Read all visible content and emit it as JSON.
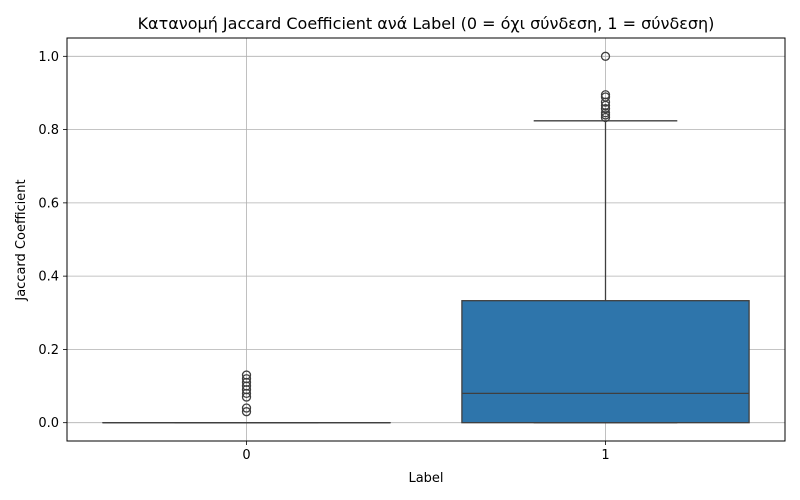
{
  "chart_data": {
    "type": "box",
    "title": "Κατανομή Jaccard Coefficient ανά Label (0 = όχι σύνδεση, 1 = σύνδεση)",
    "xlabel": "Label",
    "ylabel": "Jaccard Coefficient",
    "categories": [
      "0",
      "1"
    ],
    "ylim": [
      -0.05,
      1.05
    ],
    "yticks": [
      "0.0",
      "0.2",
      "0.4",
      "0.6",
      "0.8",
      "1.0"
    ],
    "grid": true,
    "box_color": "#2e75ab",
    "boxes": [
      {
        "label": "0",
        "whisker_low": 0.0,
        "q1": 0.0,
        "median": 0.0,
        "q3": 0.0,
        "whisker_high": 0.0,
        "outliers": [
          0.03,
          0.04,
          0.07,
          0.08,
          0.09,
          0.1,
          0.11,
          0.12,
          0.13
        ]
      },
      {
        "label": "1",
        "whisker_low": 0.0,
        "q1": 0.0,
        "median": 0.08,
        "q3": 0.333,
        "whisker_high": 0.824,
        "outliers": [
          0.833,
          0.84,
          0.846,
          0.857,
          0.866,
          0.875,
          0.889,
          0.895,
          1.0
        ]
      }
    ]
  }
}
